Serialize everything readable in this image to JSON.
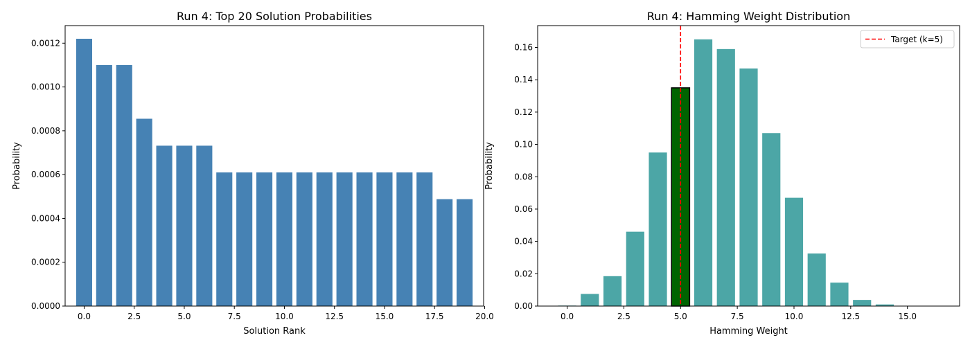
{
  "chart_data": [
    {
      "type": "bar",
      "title": "Run 4: Top 20 Solution Probabilities",
      "xlabel": "Solution Rank",
      "ylabel": "Probability",
      "xlim": [
        -0.95,
        19.95
      ],
      "ylim": [
        0,
        0.00128
      ],
      "xticks": [
        0.0,
        2.5,
        5.0,
        7.5,
        10.0,
        12.5,
        15.0,
        17.5,
        20.0
      ],
      "xtick_labels": [
        "0.0",
        "2.5",
        "5.0",
        "7.5",
        "10.0",
        "12.5",
        "15.0",
        "17.5",
        "20.0"
      ],
      "yticks": [
        0,
        0.0002,
        0.0004,
        0.0006,
        0.0008,
        0.001,
        0.0012
      ],
      "ytick_labels": [
        "0.0000",
        "0.0002",
        "0.0004",
        "0.0006",
        "0.0008",
        "0.0010",
        "0.0012"
      ],
      "bar_color": "#4682b4",
      "x": [
        0,
        1,
        2,
        3,
        4,
        5,
        6,
        7,
        8,
        9,
        10,
        11,
        12,
        13,
        14,
        15,
        16,
        17,
        18,
        19
      ],
      "values": [
        0.00122,
        0.0011,
        0.0011,
        0.000855,
        0.000732,
        0.000732,
        0.000732,
        0.00061,
        0.00061,
        0.00061,
        0.00061,
        0.00061,
        0.00061,
        0.00061,
        0.00061,
        0.00061,
        0.00061,
        0.00061,
        0.000488,
        0.000488
      ]
    },
    {
      "type": "bar",
      "title": "Run 4: Hamming Weight Distribution",
      "xlabel": "Hamming Weight",
      "ylabel": "Probability",
      "xlim": [
        -1.3,
        17.3
      ],
      "ylim": [
        0,
        0.1735
      ],
      "xticks": [
        0.0,
        2.5,
        5.0,
        7.5,
        10.0,
        12.5,
        15.0
      ],
      "xtick_labels": [
        "0.0",
        "2.5",
        "5.0",
        "7.5",
        "10.0",
        "12.5",
        "15.0"
      ],
      "yticks": [
        0,
        0.02,
        0.04,
        0.06,
        0.08,
        0.1,
        0.12,
        0.14,
        0.16
      ],
      "ytick_labels": [
        "0.00",
        "0.02",
        "0.04",
        "0.06",
        "0.08",
        "0.10",
        "0.12",
        "0.14",
        "0.16"
      ],
      "bar_color": "#4ca6a6",
      "highlight_color": "#006400",
      "highlight_index": 5,
      "x": [
        0,
        1,
        2,
        3,
        4,
        5,
        6,
        7,
        8,
        9,
        10,
        11,
        12,
        13,
        14,
        15,
        16
      ],
      "values": [
        0.0003,
        0.0075,
        0.0185,
        0.046,
        0.095,
        0.135,
        0.165,
        0.159,
        0.147,
        0.107,
        0.067,
        0.0325,
        0.0145,
        0.0038,
        0.001,
        0.0002,
        0.0001
      ],
      "reference_line": {
        "x": 5,
        "color": "#ff0000",
        "style": "dashed",
        "label": "Target (k=5)"
      },
      "legend": {
        "position": "top-right",
        "entries": [
          "Target (k=5)"
        ]
      }
    }
  ]
}
